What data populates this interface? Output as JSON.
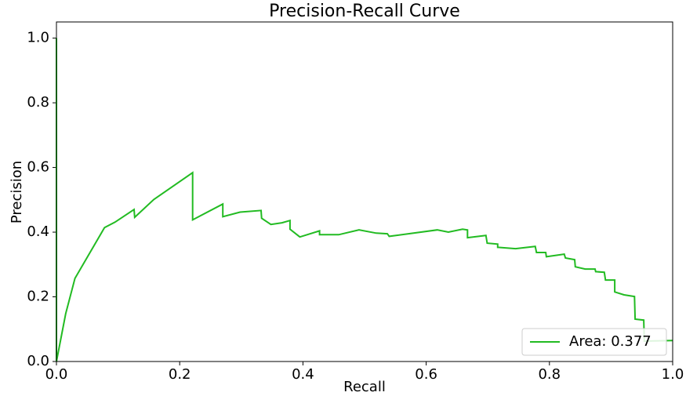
{
  "chart_data": {
    "type": "line",
    "title": "Precision-Recall Curve",
    "xlabel": "Recall",
    "ylabel": "Precision",
    "xlim": [
      0,
      1
    ],
    "ylim": [
      0,
      1.05
    ],
    "xticks": [
      {
        "value": 0,
        "label": "0.0"
      },
      0.2,
      0.4,
      0.6,
      0.8,
      {
        "value": 1,
        "label": "1.0"
      }
    ],
    "yticks": [
      {
        "value": 0,
        "label": "0.0"
      },
      0.2,
      0.4,
      0.6,
      0.8,
      {
        "value": 1,
        "label": "1.0"
      }
    ],
    "legend": "lower right",
    "grid": false,
    "series": [
      {
        "name": "Area: 0.377",
        "color": "#22bb22",
        "x": [
          0,
          0,
          0.015,
          0.03,
          0.078,
          0.095,
          0.126,
          0.127,
          0.158,
          0.221,
          0.221,
          0.27,
          0.27,
          0.298,
          0.332,
          0.333,
          0.348,
          0.366,
          0.379,
          0.379,
          0.395,
          0.427,
          0.427,
          0.458,
          0.491,
          0.519,
          0.537,
          0.54,
          0.618,
          0.636,
          0.659,
          0.667,
          0.667,
          0.697,
          0.699,
          0.716,
          0.716,
          0.745,
          0.777,
          0.779,
          0.794,
          0.795,
          0.824,
          0.826,
          0.841,
          0.842,
          0.858,
          0.874,
          0.875,
          0.889,
          0.891,
          0.906,
          0.906,
          0.921,
          0.938,
          0.939,
          0.953,
          0.954,
          1
        ],
        "values": [
          1,
          0,
          0.148,
          0.257,
          0.414,
          0.431,
          0.47,
          0.446,
          0.501,
          0.584,
          0.438,
          0.487,
          0.448,
          0.462,
          0.467,
          0.443,
          0.424,
          0.429,
          0.436,
          0.409,
          0.385,
          0.404,
          0.392,
          0.392,
          0.407,
          0.397,
          0.395,
          0.387,
          0.407,
          0.4,
          0.409,
          0.407,
          0.383,
          0.39,
          0.366,
          0.363,
          0.353,
          0.349,
          0.356,
          0.337,
          0.337,
          0.324,
          0.332,
          0.32,
          0.315,
          0.293,
          0.286,
          0.286,
          0.278,
          0.276,
          0.252,
          0.252,
          0.215,
          0.206,
          0.201,
          0.131,
          0.128,
          0.063,
          0.065
        ]
      }
    ]
  }
}
